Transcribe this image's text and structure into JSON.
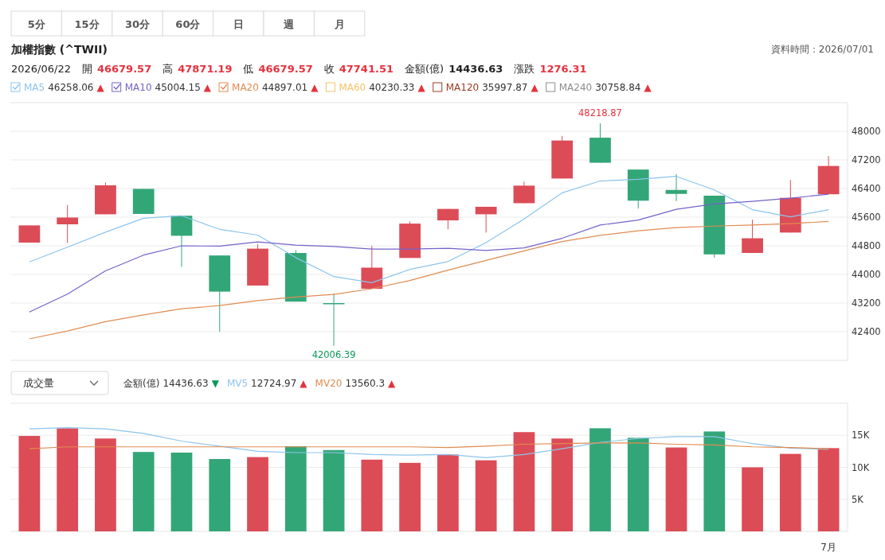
{
  "chart_data": [
    {
      "type": "other",
      "annotations": [
        "5分",
        "15分",
        "30分",
        "60分",
        "日",
        "週",
        "月"
      ]
    },
    {
      "type": "candlestick",
      "title": "加權指數 (^TWII)",
      "subtitle": "2026/06/22 開 46679.57 高 47871.19 低 46679.57 收 47741.51 金額(億) 14436.63 漲跌 1276.31",
      "categories": [
        null,
        null,
        null,
        null,
        null,
        null,
        null,
        null,
        null,
        null,
        null,
        null,
        null,
        null,
        null,
        null,
        null,
        null,
        null,
        null,
        null,
        null
      ],
      "ohlc": [
        [
          44890,
          45370,
          44890,
          45370
        ],
        [
          45400,
          45940,
          44880,
          45590
        ],
        [
          45680,
          46570,
          45680,
          46490
        ],
        [
          46390,
          46390,
          45690,
          45690
        ],
        [
          45640,
          45640,
          44210,
          45080
        ],
        [
          44530,
          44530,
          42400,
          43520
        ],
        [
          43690,
          44840,
          43690,
          44720
        ],
        [
          44600,
          44680,
          43240,
          43240
        ],
        [
          43200,
          43470,
          42006.39,
          43170
        ],
        [
          43600,
          44800,
          43600,
          44190
        ],
        [
          44460,
          45480,
          44460,
          45420
        ],
        [
          45510,
          45830,
          45260,
          45830
        ],
        [
          45680,
          45890,
          45170,
          45890
        ],
        [
          45990,
          46590,
          45990,
          46480
        ],
        [
          46679.57,
          47871.19,
          46679.57,
          47741.51
        ],
        [
          47820,
          48218.87,
          47120,
          47120
        ],
        [
          46930,
          46930,
          45840,
          46060
        ],
        [
          46360,
          46800,
          46050,
          46250
        ],
        [
          46200,
          46200,
          44470,
          44560
        ],
        [
          44600,
          45530,
          44600,
          45010
        ],
        [
          45170,
          46640,
          45170,
          46140
        ],
        [
          46240,
          47310,
          46240,
          47030
        ]
      ],
      "colors": [
        "#dc4c57",
        "#dc4c57",
        "#dc4c57",
        "#33a678",
        "#33a678",
        "#33a678",
        "#dc4c57",
        "#33a678",
        "#33a678",
        "#dc4c57",
        "#dc4c57",
        "#dc4c57",
        "#dc4c57",
        "#dc4c57",
        "#dc4c57",
        "#33a678",
        "#33a678",
        "#33a678",
        "#33a678",
        "#dc4c57",
        "#dc4c57",
        "#dc4c57"
      ],
      "series": [
        {
          "type": "line",
          "name": "MA5 46258.06 ▲",
          "color": "#8dc4ec",
          "values": [
            44350,
            44760,
            45180,
            45570,
            45640,
            45260,
            45100,
            44470,
            43940,
            43770,
            44140,
            44360,
            44890,
            45550,
            46280,
            46610,
            46660,
            46740,
            46360,
            45810,
            45610,
            45810
          ]
        },
        {
          "type": "line",
          "name": "MA10 45004.15 ▲",
          "color": "#7562c9",
          "values": [
            42950,
            43450,
            44100,
            44540,
            44800,
            44790,
            44910,
            44820,
            44780,
            44710,
            44710,
            44730,
            44670,
            44740,
            45010,
            45380,
            45520,
            45820,
            45970,
            46040,
            46130,
            46240
          ]
        },
        {
          "type": "line",
          "name": "MA20 44897.01 ▲",
          "color": "#e08c52",
          "values": [
            42200,
            42420,
            42680,
            42870,
            43040,
            43130,
            43270,
            43370,
            43440,
            43600,
            43830,
            44120,
            44390,
            44660,
            44920,
            45090,
            45220,
            45310,
            45350,
            45380,
            45420,
            45480
          ]
        },
        {
          "type": "line",
          "name": "MA60 40230.33 ▲",
          "color": "#f5c36b",
          "values": [
            null,
            null,
            null,
            null,
            null,
            null,
            null,
            null,
            null,
            null,
            null,
            null,
            null,
            null,
            null,
            null,
            null,
            null,
            null,
            null,
            null,
            null
          ]
        },
        {
          "type": "line",
          "name": "MA120 35997.87 ▲",
          "color": "#9b3a22",
          "values": [
            null,
            null,
            null,
            null,
            null,
            null,
            null,
            null,
            null,
            null,
            null,
            null,
            null,
            null,
            null,
            null,
            null,
            null,
            null,
            null,
            null,
            null
          ]
        },
        {
          "type": "line",
          "name": "MA240 30758.84 ▲",
          "color": "#8c8c8c",
          "values": [
            null,
            null,
            null,
            null,
            null,
            null,
            null,
            null,
            null,
            null,
            null,
            null,
            null,
            null,
            null,
            null,
            null,
            null,
            null,
            null,
            null,
            null
          ]
        }
      ],
      "ylim": [
        41600,
        48800
      ],
      "yticks": [
        42400,
        43200,
        44000,
        44800,
        45600,
        46400,
        47200,
        48000
      ],
      "grid": "y",
      "legend": "top left",
      "tick_labels": "y",
      "annotations": [
        "資料時間：2026/07/01",
        {
          "text": "48218.87",
          "y": 48218.87
        },
        {
          "text": "42006.39",
          "y": 42006.39
        }
      ]
    },
    {
      "type": "bar",
      "title": "成交量",
      "categories": [
        null,
        null,
        null,
        null,
        null,
        null,
        null,
        null,
        null,
        null,
        null,
        null,
        null,
        null,
        null,
        null,
        null,
        null,
        null,
        null,
        null,
        "7月"
      ],
      "series": [
        {
          "type": "bar",
          "colors": [
            "#dc4c57",
            "#dc4c57",
            "#dc4c57",
            "#33a678",
            "#33a678",
            "#33a678",
            "#dc4c57",
            "#33a678",
            "#33a678",
            "#dc4c57",
            "#dc4c57",
            "#dc4c57",
            "#dc4c57",
            "#dc4c57",
            "#dc4c57",
            "#33a678",
            "#33a678",
            "#dc4c57",
            "#33a678",
            "#dc4c57",
            "#dc4c57",
            "#dc4c57"
          ],
          "values": [
            14900,
            16100,
            14500,
            12400,
            12300,
            11300,
            11600,
            13300,
            12700,
            11200,
            10700,
            12000,
            11100,
            15500,
            14500,
            16100,
            14600,
            13100,
            15600,
            10000,
            12100,
            13000
          ]
        },
        {
          "type": "line",
          "name": "MV5 12724.97 ▲",
          "color": "#8dc4ec",
          "values": [
            16000,
            16200,
            16000,
            15300,
            14100,
            13300,
            12500,
            12300,
            12300,
            12000,
            11900,
            12000,
            11500,
            12000,
            12900,
            13900,
            14500,
            14800,
            14800,
            13700,
            13000,
            12800
          ]
        },
        {
          "type": "line",
          "name": "MV20 13560.3 ▲",
          "color": "#e08c52",
          "values": [
            12900,
            13200,
            13200,
            13200,
            13200,
            13200,
            13200,
            13200,
            13200,
            13200,
            13200,
            13100,
            13300,
            13600,
            13700,
            13800,
            13800,
            13600,
            13500,
            13200,
            13100,
            12900
          ]
        }
      ],
      "annotations": [
        "金額(億) 14436.63 ▼"
      ],
      "ylim": [
        0,
        20000
      ],
      "yticks": [
        {
          "value": 5000,
          "label": "5K"
        },
        {
          "value": 10000,
          "label": "10K"
        },
        {
          "value": 15000,
          "label": "15K"
        }
      ],
      "grid": "y",
      "legend": "top left"
    }
  ]
}
